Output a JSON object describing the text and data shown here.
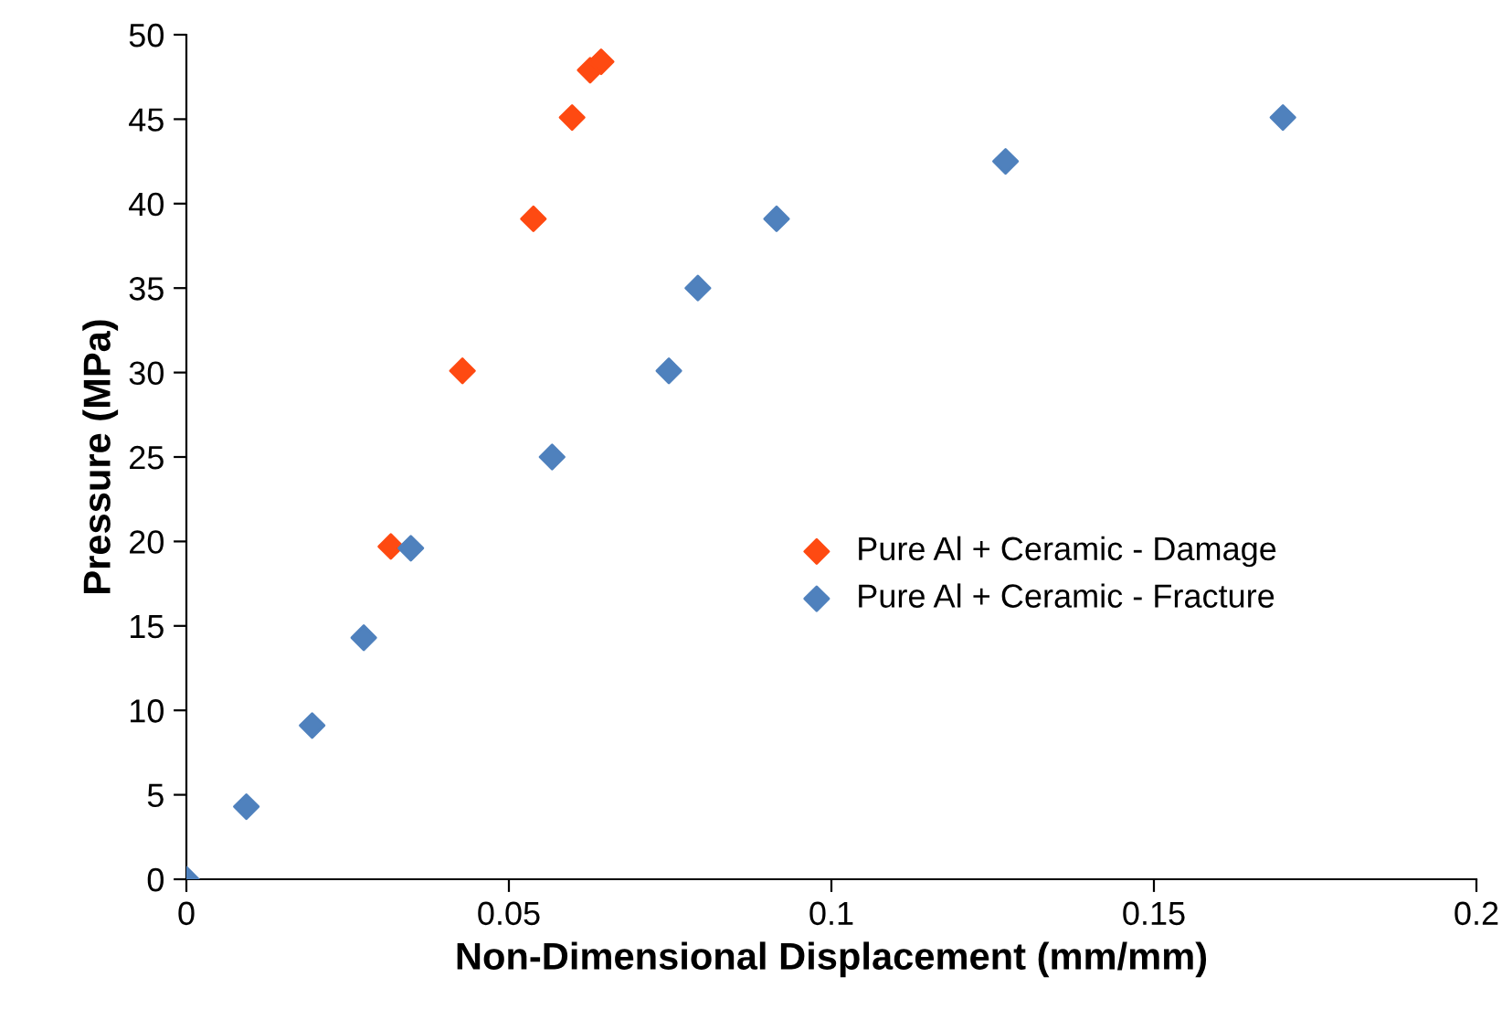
{
  "chart_data": {
    "type": "scatter",
    "xlabel": "Non-Dimensional Displacement (mm/mm)",
    "ylabel": "Pressure (MPa)",
    "xlim": [
      0,
      0.2
    ],
    "xticks": [
      {
        "value": 0,
        "label": "0"
      },
      {
        "value": 0.05,
        "label": "0.05"
      },
      {
        "value": 0.1,
        "label": "0.1"
      },
      {
        "value": 0.15,
        "label": "0.15"
      },
      {
        "value": 0.2,
        "label": "0.2"
      }
    ],
    "ylim": [
      0,
      50
    ],
    "yticks": [
      0,
      5,
      10,
      15,
      20,
      25,
      30,
      35,
      40,
      45,
      50
    ],
    "marker": "diamond",
    "grid": false,
    "legend": "right",
    "series": [
      {
        "name": "Pure Al + Ceramic - Damage",
        "color": "#fe4a12",
        "x": [
          0.0317,
          0.0428,
          0.0538,
          0.0598,
          0.0626,
          0.0643
        ],
        "values": [
          19.7,
          30.1,
          39.1,
          45.1,
          47.9,
          48.4
        ]
      },
      {
        "name": "Pure Al + Ceramic - Fracture",
        "color": "#4f81bd",
        "x": [
          0,
          0.0093,
          0.0195,
          0.0275,
          0.0348,
          0.0567,
          0.0748,
          0.0793,
          0.0915,
          0.127,
          0.17
        ],
        "values": [
          0,
          4.3,
          9.1,
          14.3,
          19.6,
          25.0,
          30.1,
          35.0,
          39.1,
          42.5,
          45.1
        ]
      }
    ]
  }
}
